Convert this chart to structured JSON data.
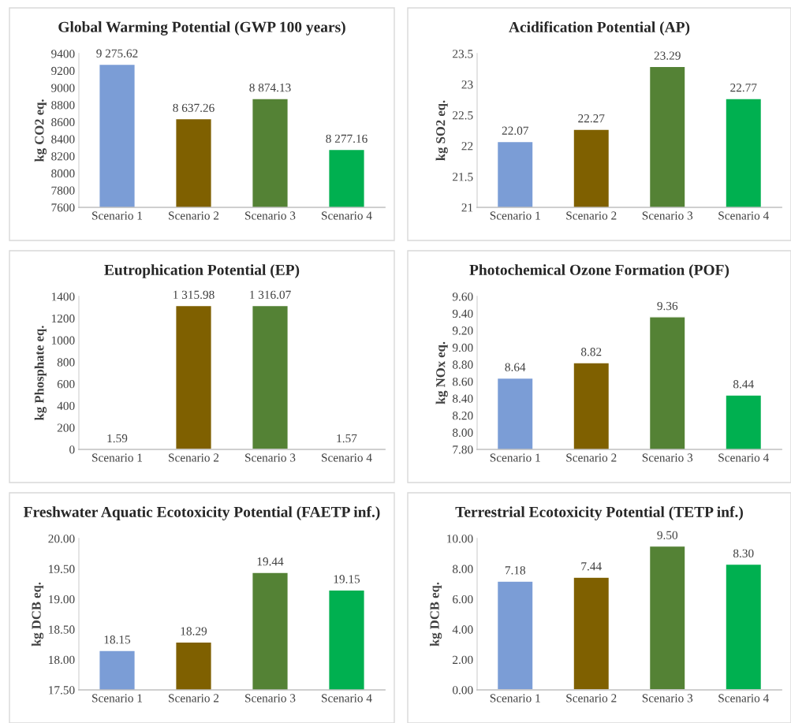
{
  "chart_data": [
    {
      "type": "bar",
      "title": "Global Warming Potential (GWP 100 years)",
      "ylabel": "kg CO2 eq.",
      "categories": [
        "Scenario 1",
        "Scenario 2",
        "Scenario 3",
        "Scenario 4"
      ],
      "values": [
        9275.62,
        8637.26,
        8874.13,
        8277.16
      ],
      "value_labels": [
        "9 275.62",
        "8 637.26",
        "8 874.13",
        "8 277.16"
      ],
      "colors": [
        "#7b9dd6",
        "#7f6000",
        "#548235",
        "#00b050"
      ],
      "ylim": [
        7600,
        9400
      ],
      "yticks": [
        7600,
        7800,
        8000,
        8200,
        8400,
        8600,
        8800,
        9000,
        9200,
        9400
      ],
      "grid": false,
      "legend": false
    },
    {
      "type": "bar",
      "title": "Acidification Potential (AP)",
      "ylabel": "kg SO2 eq.",
      "categories": [
        "Scenario 1",
        "Scenario 2",
        "Scenario 3",
        "Scenario 4"
      ],
      "values": [
        22.07,
        22.27,
        23.29,
        22.77
      ],
      "value_labels": [
        "22.07",
        "22.27",
        "23.29",
        "22.77"
      ],
      "colors": [
        "#7b9dd6",
        "#7f6000",
        "#548235",
        "#00b050"
      ],
      "ylim": [
        21,
        23.5
      ],
      "yticks": [
        21,
        21.5,
        22,
        22.5,
        23,
        23.5
      ],
      "grid": false,
      "legend": false
    },
    {
      "type": "bar",
      "title": "Eutrophication Potential (EP)",
      "ylabel": "kg Phosphate eq.",
      "categories": [
        "Scenario 1",
        "Scenario 2",
        "Scenario 3",
        "Scenario 4"
      ],
      "values": [
        1.59,
        1315.98,
        1316.07,
        1.57
      ],
      "value_labels": [
        "1.59",
        "1 315.98",
        "1 316.07",
        "1.57"
      ],
      "colors": [
        "#7b9dd6",
        "#7f6000",
        "#548235",
        "#00b050"
      ],
      "ylim": [
        0,
        1400
      ],
      "yticks": [
        0,
        200,
        400,
        600,
        800,
        1000,
        1200,
        1400
      ],
      "grid": false,
      "legend": false
    },
    {
      "type": "bar",
      "title": "Photochemical Ozone Formation (POF)",
      "ylabel": "kg NOx eq.",
      "categories": [
        "Scenario 1",
        "Scenario 2",
        "Scenario 3",
        "Scenario 4"
      ],
      "values": [
        8.64,
        8.82,
        9.36,
        8.44
      ],
      "value_labels": [
        "8.64",
        "8.82",
        "9.36",
        "8.44"
      ],
      "colors": [
        "#7b9dd6",
        "#7f6000",
        "#548235",
        "#00b050"
      ],
      "ylim": [
        7.8,
        9.6
      ],
      "yticks": [
        {
          "value": 7.8,
          "label": "7.80"
        },
        {
          "value": 8.0,
          "label": "8.00"
        },
        {
          "value": 8.2,
          "label": "8.20"
        },
        {
          "value": 8.4,
          "label": "8.40"
        },
        {
          "value": 8.6,
          "label": "8.60"
        },
        {
          "value": 8.8,
          "label": "8.80"
        },
        {
          "value": 9.0,
          "label": "9.00"
        },
        {
          "value": 9.2,
          "label": "9.20"
        },
        {
          "value": 9.4,
          "label": "9.40"
        },
        {
          "value": 9.6,
          "label": "9.60"
        }
      ],
      "grid": false,
      "legend": false
    },
    {
      "type": "bar",
      "title": "Freshwater Aquatic Ecotoxicity Potential (FAETP inf.)",
      "ylabel": "kg DCB eq.",
      "categories": [
        "Scenario 1",
        "Scenario 2",
        "Scenario 3",
        "Scenario 4"
      ],
      "values": [
        18.15,
        18.29,
        19.44,
        19.15
      ],
      "value_labels": [
        "18.15",
        "18.29",
        "19.44",
        "19.15"
      ],
      "colors": [
        "#7b9dd6",
        "#7f6000",
        "#548235",
        "#00b050"
      ],
      "ylim": [
        17.5,
        20.0
      ],
      "yticks": [
        {
          "value": 17.5,
          "label": "17.50"
        },
        {
          "value": 18.0,
          "label": "18.00"
        },
        {
          "value": 18.5,
          "label": "18.50"
        },
        {
          "value": 19.0,
          "label": "19.00"
        },
        {
          "value": 19.5,
          "label": "19.50"
        },
        {
          "value": 20.0,
          "label": "20.00"
        }
      ],
      "grid": false,
      "legend": false
    },
    {
      "type": "bar",
      "title": "Terrestrial Ecotoxicity Potential (TETP inf.)",
      "ylabel": "kg DCB eq.",
      "categories": [
        "Scenario 1",
        "Scenario 2",
        "Scenario 3",
        "Scenario 4"
      ],
      "values": [
        7.18,
        7.44,
        9.5,
        8.3
      ],
      "value_labels": [
        "7.18",
        "7.44",
        "9.50",
        "8.30"
      ],
      "colors": [
        "#7b9dd6",
        "#7f6000",
        "#548235",
        "#00b050"
      ],
      "ylim": [
        0,
        10
      ],
      "yticks": [
        {
          "value": 0,
          "label": "0.00"
        },
        {
          "value": 2,
          "label": "2.00"
        },
        {
          "value": 4,
          "label": "4.00"
        },
        {
          "value": 6,
          "label": "6.00"
        },
        {
          "value": 8,
          "label": "8.00"
        },
        {
          "value": 10,
          "label": "10.00"
        }
      ],
      "grid": false,
      "legend": false
    }
  ]
}
